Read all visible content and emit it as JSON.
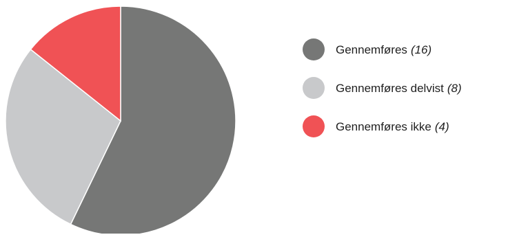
{
  "chart_data": {
    "type": "pie",
    "title": "",
    "legend_position": "right",
    "slices": [
      {
        "label": "Gennemføres",
        "value": 16,
        "display_value": "(16)",
        "color": "#767776"
      },
      {
        "label": "Gennemføres delvist",
        "value": 8,
        "display_value": "(8)",
        "color": "#c8c9cb"
      },
      {
        "label": "Gennemføres ikke",
        "value": 4,
        "display_value": "(4)",
        "color": "#f05255"
      }
    ]
  }
}
